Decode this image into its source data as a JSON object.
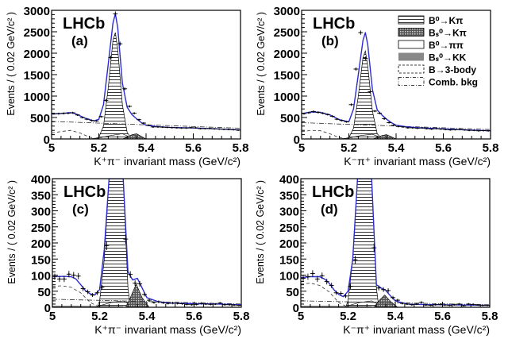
{
  "chart_data": [
    {
      "type": "line",
      "panel": "(a)",
      "experiment_label": "LHCb",
      "xlabel": "K⁺π⁻ invariant mass (GeV/c²)",
      "ylabel": "Events / ( 0.02 GeV/c² )",
      "xlim": [
        5.0,
        5.8
      ],
      "ylim": [
        0,
        3000
      ],
      "xticks": [
        "5",
        "5.2",
        "5.4",
        "5.6",
        "5.8"
      ],
      "yticks": [
        "0",
        "500",
        "1000",
        "1500",
        "2000",
        "2500",
        "3000"
      ],
      "data_points": {
        "x": [
          5.01,
          5.03,
          5.05,
          5.07,
          5.09,
          5.11,
          5.13,
          5.15,
          5.17,
          5.19,
          5.21,
          5.23,
          5.25,
          5.27,
          5.29,
          5.31,
          5.33,
          5.35,
          5.37,
          5.39,
          5.41,
          5.43,
          5.45,
          5.47,
          5.49,
          5.51,
          5.53,
          5.55,
          5.57,
          5.59,
          5.61,
          5.63,
          5.65,
          5.67,
          5.69,
          5.71,
          5.73,
          5.75,
          5.77,
          5.79
        ],
        "y": [
          590,
          590,
          595,
          600,
          610,
          560,
          500,
          460,
          430,
          420,
          520,
          900,
          1900,
          2920,
          2220,
          1170,
          760,
          600,
          450,
          370,
          320,
          280,
          280,
          275,
          270,
          265,
          260,
          255,
          255,
          265,
          260,
          240,
          240,
          245,
          235,
          230,
          225,
          220,
          215,
          205
        ]
      },
      "fit_total": {
        "x": [
          5.0,
          5.04,
          5.08,
          5.1,
          5.14,
          5.18,
          5.2,
          5.22,
          5.24,
          5.26,
          5.27,
          5.28,
          5.3,
          5.32,
          5.34,
          5.36,
          5.38,
          5.4,
          5.45,
          5.5,
          5.6,
          5.7,
          5.8
        ],
        "y": [
          580,
          595,
          615,
          590,
          490,
          420,
          460,
          800,
          1750,
          2700,
          2920,
          2600,
          1300,
          740,
          570,
          470,
          380,
          320,
          285,
          270,
          255,
          235,
          210
        ]
      },
      "components": {
        "B0_Kpi": {
          "x": [
            5.18,
            5.2,
            5.22,
            5.24,
            5.26,
            5.27,
            5.28,
            5.3,
            5.32,
            5.34
          ],
          "y": [
            0,
            40,
            300,
            1200,
            2300,
            2480,
            2100,
            800,
            150,
            0
          ]
        },
        "Bs_Kpi": {
          "x": [
            5.3,
            5.32,
            5.34,
            5.36,
            5.38,
            5.4
          ],
          "y": [
            0,
            40,
            100,
            120,
            60,
            0
          ]
        },
        "B0_pipi": {
          "x": [
            5.15,
            5.2,
            5.25,
            5.3,
            5.35
          ],
          "y": [
            0,
            20,
            80,
            120,
            0
          ]
        },
        "Bs_KK": {
          "x": [
            5.22,
            5.26,
            5.3,
            5.34
          ],
          "y": [
            0,
            15,
            10,
            0
          ]
        },
        "B_3body": {
          "x": [
            5.0,
            5.05,
            5.08,
            5.12,
            5.16,
            5.2
          ],
          "y": [
            140,
            180,
            200,
            140,
            40,
            0
          ]
        },
        "Comb_bkg": {
          "x": [
            5.0,
            5.4,
            5.8
          ],
          "y": [
            410,
            330,
            250
          ]
        }
      }
    },
    {
      "type": "line",
      "panel": "(b)",
      "experiment_label": "LHCb",
      "xlabel": "K⁻π⁺ invariant mass (GeV/c²)",
      "ylabel": "Events / ( 0.02 GeV/c² )",
      "xlim": [
        5.0,
        5.8
      ],
      "ylim": [
        0,
        3000
      ],
      "xticks": [
        "5",
        "5.2",
        "5.4",
        "5.6",
        "5.8"
      ],
      "yticks": [
        "0",
        "500",
        "1000",
        "1500",
        "2000",
        "2500",
        "3000"
      ],
      "legend": {
        "position": "top-right",
        "entries": [
          {
            "label": "B⁰→Kπ",
            "style": "hatched"
          },
          {
            "label": "Bₛ⁰→Kπ",
            "style": "crosshatch-dark"
          },
          {
            "label": "B⁰→ππ",
            "style": "outline"
          },
          {
            "label": "Bₛ⁰→KK",
            "style": "solid-gray"
          },
          {
            "label": "B→3-body",
            "style": "dashed"
          },
          {
            "label": "Comb. bkg",
            "style": "dash-dot"
          }
        ]
      },
      "data_points": {
        "x": [
          5.01,
          5.03,
          5.05,
          5.07,
          5.09,
          5.11,
          5.13,
          5.15,
          5.17,
          5.19,
          5.21,
          5.23,
          5.25,
          5.27,
          5.29,
          5.31,
          5.33,
          5.35,
          5.37,
          5.39,
          5.41,
          5.43,
          5.45,
          5.47,
          5.49,
          5.51,
          5.53,
          5.55,
          5.57,
          5.59,
          5.61,
          5.63,
          5.65,
          5.67,
          5.69,
          5.71,
          5.73,
          5.75,
          5.77,
          5.79
        ],
        "y": [
          590,
          610,
          640,
          620,
          600,
          570,
          530,
          460,
          430,
          400,
          800,
          1630,
          2480,
          1880,
          1100,
          650,
          600,
          470,
          380,
          320,
          290,
          280,
          260,
          260,
          250,
          260,
          240,
          230,
          240,
          230,
          220,
          210,
          215,
          220,
          210,
          200,
          200,
          190,
          195,
          190
        ]
      },
      "fit_total": {
        "x": [
          5.0,
          5.04,
          5.08,
          5.12,
          5.16,
          5.2,
          5.22,
          5.24,
          5.26,
          5.27,
          5.28,
          5.3,
          5.32,
          5.34,
          5.36,
          5.38,
          5.4,
          5.45,
          5.5,
          5.6,
          5.7,
          5.8
        ],
        "y": [
          590,
          630,
          620,
          560,
          450,
          400,
          700,
          1500,
          2300,
          2480,
          2200,
          1150,
          680,
          560,
          460,
          380,
          320,
          280,
          260,
          235,
          210,
          190
        ]
      },
      "components": {
        "B0_Kpi": {
          "x": [
            5.18,
            5.2,
            5.22,
            5.24,
            5.26,
            5.27,
            5.28,
            5.3,
            5.32,
            5.34
          ],
          "y": [
            0,
            30,
            250,
            1000,
            1900,
            2050,
            1700,
            650,
            120,
            0
          ]
        },
        "Bs_Kpi": {
          "x": [
            5.3,
            5.32,
            5.34,
            5.36,
            5.38,
            5.4
          ],
          "y": [
            0,
            30,
            80,
            100,
            50,
            0
          ]
        },
        "B0_pipi": {
          "x": [
            5.15,
            5.2,
            5.25,
            5.3,
            5.35
          ],
          "y": [
            0,
            20,
            80,
            110,
            0
          ]
        },
        "Bs_KK": {
          "x": [
            5.22,
            5.26,
            5.3,
            5.34
          ],
          "y": [
            0,
            15,
            10,
            0
          ]
        },
        "B_3body": {
          "x": [
            5.0,
            5.04,
            5.08,
            5.12,
            5.16,
            5.2
          ],
          "y": [
            170,
            200,
            190,
            120,
            30,
            0
          ]
        },
        "Comb_bkg": {
          "x": [
            5.0,
            5.4,
            5.8
          ],
          "y": [
            380,
            300,
            220
          ]
        }
      }
    },
    {
      "type": "line",
      "panel": "(c)",
      "experiment_label": "LHCb",
      "xlabel": "K⁺π⁻ invariant mass (GeV/c²)",
      "ylabel": "Events / ( 0.02 GeV/c² )",
      "xlim": [
        5.0,
        5.8
      ],
      "ylim": [
        0,
        400
      ],
      "xticks": [
        "5",
        "5.2",
        "5.4",
        "5.6",
        "5.8"
      ],
      "yticks": [
        "0",
        "50",
        "100",
        "150",
        "200",
        "250",
        "300",
        "350",
        "400"
      ],
      "data_points": {
        "x": [
          5.01,
          5.03,
          5.05,
          5.07,
          5.09,
          5.11,
          5.13,
          5.15,
          5.17,
          5.19,
          5.21,
          5.23,
          5.31,
          5.33,
          5.35,
          5.37,
          5.39,
          5.41,
          5.43,
          5.45,
          5.47,
          5.49,
          5.51,
          5.53,
          5.55,
          5.57,
          5.59,
          5.61,
          5.63,
          5.65,
          5.67,
          5.69,
          5.71,
          5.73,
          5.75,
          5.77,
          5.79
        ],
        "y": [
          95,
          88,
          88,
          103,
          100,
          97,
          58,
          48,
          38,
          45,
          62,
          192,
          212,
          102,
          75,
          73,
          40,
          22,
          15,
          17,
          14,
          12,
          13,
          12,
          11,
          9,
          8,
          9,
          12,
          10,
          9,
          10,
          13,
          8,
          8,
          7,
          6
        ]
      },
      "fit_total": {
        "x": [
          5.0,
          5.05,
          5.08,
          5.1,
          5.12,
          5.14,
          5.16,
          5.18,
          5.2,
          5.22,
          5.24,
          5.3,
          5.32,
          5.34,
          5.36,
          5.38,
          5.4,
          5.45,
          5.5,
          5.6,
          5.7,
          5.8
        ],
        "y": [
          95,
          96,
          95,
          88,
          70,
          52,
          42,
          38,
          55,
          180,
          400,
          400,
          110,
          85,
          90,
          60,
          30,
          17,
          13,
          11,
          10,
          8
        ]
      },
      "components": {
        "B0_Kpi": {
          "x": [
            5.19,
            5.2,
            5.22,
            5.24,
            5.3,
            5.32,
            5.33
          ],
          "y": [
            0,
            20,
            150,
            400,
            400,
            60,
            0
          ]
        },
        "Bs_Kpi": {
          "x": [
            5.31,
            5.33,
            5.355,
            5.38,
            5.41
          ],
          "y": [
            0,
            30,
            72,
            30,
            0
          ]
        },
        "B0_pipi": {
          "x": [
            5.15,
            5.2,
            5.25,
            5.3,
            5.35
          ],
          "y": [
            0,
            5,
            15,
            20,
            0
          ]
        },
        "Bs_KK": {
          "x": [
            5.0,
            5.1,
            5.2,
            5.3
          ],
          "y": [
            5,
            5,
            4,
            3
          ]
        },
        "B_3body": {
          "x": [
            5.0,
            5.04,
            5.08,
            5.12,
            5.16,
            5.2
          ],
          "y": [
            65,
            67,
            62,
            45,
            15,
            0
          ]
        },
        "Comb_bkg": {
          "x": [
            5.0,
            5.4,
            5.8
          ],
          "y": [
            25,
            18,
            10
          ]
        }
      }
    },
    {
      "type": "line",
      "panel": "(d)",
      "experiment_label": "LHCb",
      "xlabel": "K⁻π⁺ invariant mass (GeV/c²)",
      "ylabel": "Events / ( 0.02 GeV/c² )",
      "xlim": [
        5.0,
        5.8
      ],
      "ylim": [
        0,
        400
      ],
      "xticks": [
        "5",
        "5.2",
        "5.4",
        "5.6",
        "5.8"
      ],
      "yticks": [
        "0",
        "50",
        "100",
        "150",
        "200",
        "250",
        "300",
        "350",
        "400"
      ],
      "data_points": {
        "x": [
          5.01,
          5.03,
          5.05,
          5.07,
          5.09,
          5.11,
          5.13,
          5.15,
          5.17,
          5.19,
          5.21,
          5.23,
          5.31,
          5.33,
          5.35,
          5.37,
          5.39,
          5.41,
          5.43,
          5.45,
          5.47,
          5.49,
          5.51,
          5.53,
          5.55,
          5.57,
          5.59,
          5.61,
          5.63,
          5.65,
          5.67,
          5.69,
          5.71,
          5.73,
          5.75,
          5.77,
          5.79
        ],
        "y": [
          90,
          95,
          105,
          88,
          98,
          80,
          68,
          45,
          43,
          35,
          65,
          148,
          185,
          60,
          55,
          52,
          30,
          22,
          12,
          10,
          8,
          10,
          15,
          7,
          6,
          8,
          9,
          7,
          6,
          8,
          10,
          5,
          10,
          9,
          7,
          6,
          6
        ]
      },
      "fit_total": {
        "x": [
          5.0,
          5.04,
          5.08,
          5.1,
          5.12,
          5.14,
          5.16,
          5.18,
          5.2,
          5.22,
          5.24,
          5.3,
          5.32,
          5.34,
          5.36,
          5.38,
          5.4,
          5.45,
          5.5,
          5.6,
          5.7,
          5.8
        ],
        "y": [
          92,
          95,
          95,
          88,
          75,
          55,
          40,
          33,
          50,
          150,
          400,
          400,
          70,
          60,
          52,
          35,
          20,
          10,
          9,
          8,
          7,
          6
        ]
      },
      "components": {
        "B0_Kpi": {
          "x": [
            5.19,
            5.2,
            5.22,
            5.24,
            5.3,
            5.32,
            5.33
          ],
          "y": [
            0,
            20,
            150,
            400,
            400,
            60,
            0
          ]
        },
        "Bs_Kpi": {
          "x": [
            5.31,
            5.33,
            5.355,
            5.38,
            5.41
          ],
          "y": [
            0,
            20,
            38,
            18,
            0
          ]
        },
        "B0_pipi": {
          "x": [
            5.15,
            5.2,
            5.25,
            5.3,
            5.35
          ],
          "y": [
            0,
            5,
            15,
            20,
            0
          ]
        },
        "Bs_KK": {
          "x": [
            5.0,
            5.1,
            5.2,
            5.3
          ],
          "y": [
            5,
            5,
            4,
            3
          ]
        },
        "B_3body": {
          "x": [
            5.0,
            5.04,
            5.08,
            5.12,
            5.16,
            5.2
          ],
          "y": [
            72,
            75,
            68,
            48,
            15,
            0
          ]
        },
        "Comb_bkg": {
          "x": [
            5.0,
            5.4,
            5.8
          ],
          "y": [
            20,
            14,
            8
          ]
        }
      }
    }
  ]
}
